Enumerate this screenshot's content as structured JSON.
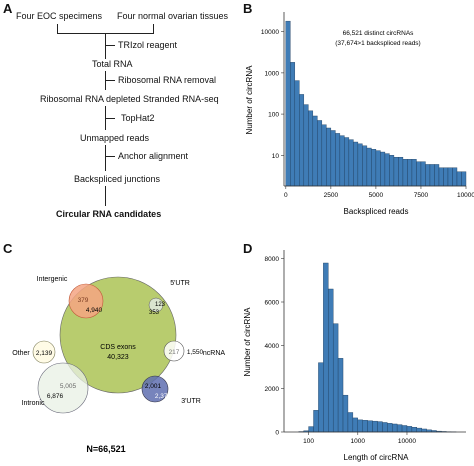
{
  "panels": {
    "a": "A",
    "b": "B",
    "c": "C",
    "d": "D"
  },
  "flow": {
    "source1": "Four EOC specimens",
    "source2": "Four normal ovarian tissues",
    "step1": "TRIzol reagent",
    "out1": "Total RNA",
    "step2": "Ribosomal RNA  removal",
    "out2": "Ribosomal RNA depleted Stranded RNA-seq",
    "step3": "TopHat2",
    "out3": "Unmapped reads",
    "step4": "Anchor alignment",
    "out4": "Backspliced junctions",
    "final": "Circular RNA candidates"
  },
  "chart_data": [
    {
      "type": "bar",
      "panel": "B",
      "annotation_line1": "66,521 distinct circRNAs",
      "annotation_line2": "(37,674>1 backspliced reads)",
      "xlabel": "Backspliced reads",
      "ylabel": "Number of circRNA",
      "x_ticks": [
        "0",
        "2500",
        "5000",
        "7500",
        "10000"
      ],
      "y_ticks": [
        "10",
        "100",
        "1000",
        "10000"
      ],
      "y_scale": "log",
      "bin_width": 250,
      "x_range": [
        -100,
        10000
      ],
      "y_range": [
        1.8,
        30000
      ],
      "color": "#3f7cb6",
      "values": [
        18000,
        1800,
        650,
        300,
        170,
        120,
        90,
        70,
        55,
        46,
        40,
        34,
        30,
        27,
        24,
        21,
        19,
        17,
        15,
        14,
        13,
        12,
        11,
        10,
        9,
        9,
        8,
        8,
        8,
        7,
        7,
        6,
        6,
        6,
        5,
        5,
        5,
        5,
        4,
        4
      ]
    },
    {
      "type": "venn",
      "panel": "C",
      "total_label": "N=66,521",
      "sets": [
        {
          "name": "CDS exons",
          "count": "40,323"
        },
        {
          "name": "Intergenic",
          "count": "4,940",
          "overlap": "379"
        },
        {
          "name": "5'UTR",
          "count": "353",
          "overlap": "123"
        },
        {
          "name": "ncRNA",
          "count": "1,550",
          "overlap": "217"
        },
        {
          "name": "3'UTR",
          "count": "2,378",
          "overlap": "2,001"
        },
        {
          "name": "Intronic",
          "count": "6,876",
          "overlap": "5,005"
        },
        {
          "name": "Other",
          "count": "2,139"
        }
      ],
      "colors": {
        "cds": "#b8cc6e",
        "intergenic": "#f4a582",
        "intronic": "#e8f0e4",
        "utr3": "#5f6fb0",
        "other": "#fffbe6"
      }
    },
    {
      "type": "bar",
      "panel": "D",
      "xlabel": "Length of circRNA",
      "ylabel": "Number of circRNA",
      "x_scale": "log",
      "x_ticks": [
        "100",
        "1000",
        "10000"
      ],
      "y_ticks": [
        "0",
        "2000",
        "4000",
        "6000",
        "8000"
      ],
      "y_range": [
        0,
        8400
      ],
      "color": "#3f7cb6",
      "bins_log10": [
        1.8,
        1.9,
        2.0,
        2.1,
        2.2,
        2.3,
        2.4,
        2.5,
        2.6,
        2.7,
        2.8,
        2.9,
        3.0,
        3.1,
        3.2,
        3.3,
        3.4,
        3.5,
        3.6,
        3.7,
        3.8,
        3.9,
        4.0,
        4.1,
        4.2,
        4.3,
        4.4,
        4.5,
        4.6,
        4.7,
        4.8,
        4.9,
        5.0
      ],
      "values": [
        20,
        60,
        250,
        1000,
        3200,
        7800,
        6600,
        5000,
        3400,
        1700,
        900,
        650,
        560,
        540,
        520,
        500,
        480,
        440,
        400,
        370,
        340,
        300,
        260,
        220,
        180,
        140,
        100,
        70,
        40,
        25,
        15,
        8
      ]
    }
  ]
}
